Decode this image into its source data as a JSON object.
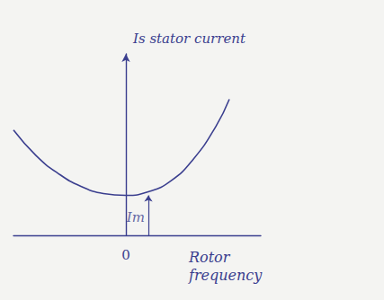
{
  "chart_data": {
    "type": "line",
    "x": [
      -1,
      -0.8,
      -0.6,
      -0.4,
      -0.2,
      0,
      0.2,
      0.4,
      0.6,
      0.8,
      0.92
    ],
    "values": [
      0.58,
      0.44,
      0.34,
      0.27,
      0.23,
      0.22,
      0.24,
      0.3,
      0.42,
      0.6,
      0.75
    ],
    "color": "#3b3f8f",
    "xlim": [
      -1,
      1.2
    ],
    "ylim": [
      0,
      1
    ],
    "xticks": [
      0
    ],
    "yticks": [],
    "x_label": "Rotor frequency",
    "y_label": "Is stator current",
    "annotations": [
      {
        "text": "Im",
        "x": 0.2,
        "y": 0.1
      }
    ],
    "tick_labels": "x",
    "grid": false
  }
}
